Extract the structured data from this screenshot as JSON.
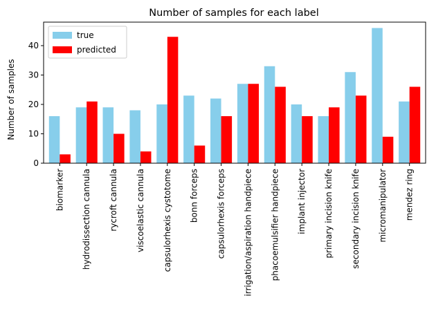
{
  "chart_data": {
    "type": "bar",
    "title": "Number of samples for each label",
    "xlabel": "",
    "ylabel": "Number of samples",
    "ylim": [
      0,
      48
    ],
    "yticks": [
      0,
      10,
      20,
      30,
      40
    ],
    "grid": false,
    "legend_position": "top-left",
    "categories": [
      "biomarker",
      "hydrodissection cannula",
      "rycroft cannula",
      "viscoelastic cannula",
      "capsulorhexis cystotome",
      "bonn forceps",
      "capsulorhexis forceps",
      "irrigation/aspiration handpiece",
      "phacoemulsifier handpiece",
      "implant injector",
      "primary incision knife",
      "secondary incision knife",
      "micromanipulator",
      "mendez ring"
    ],
    "series": [
      {
        "name": "true",
        "color": "#87ceeb",
        "values": [
          16,
          19,
          19,
          18,
          20,
          23,
          22,
          27,
          33,
          20,
          16,
          31,
          46,
          21
        ]
      },
      {
        "name": "predicted",
        "color": "#ff0000",
        "values": [
          3,
          21,
          10,
          4,
          43,
          6,
          16,
          27,
          26,
          16,
          19,
          23,
          9,
          26
        ]
      }
    ]
  }
}
